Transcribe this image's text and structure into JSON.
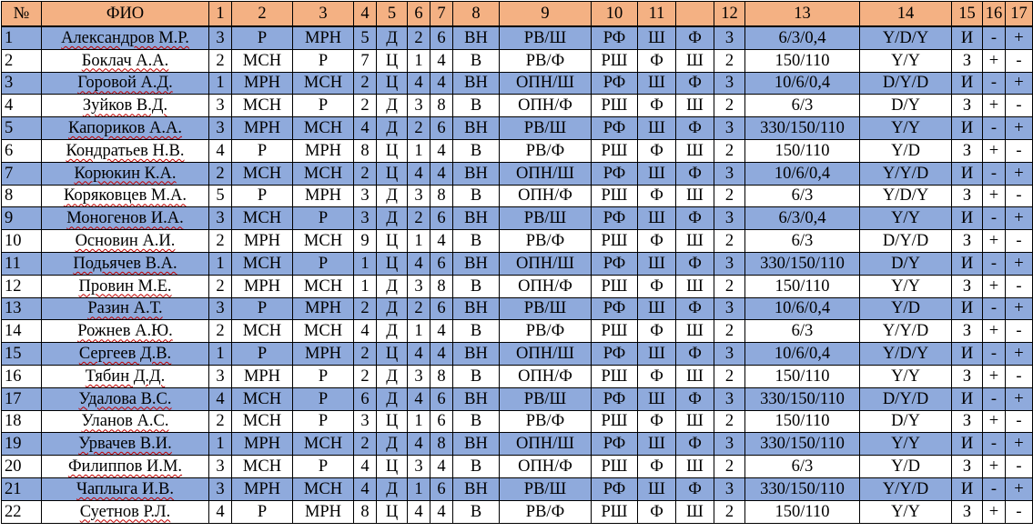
{
  "headers": [
    "№",
    "ФИО",
    "1",
    "2",
    "3",
    "4",
    "5",
    "6",
    "7",
    "8",
    "9",
    "10",
    "11",
    "",
    "12",
    "13",
    "14",
    "15",
    "16",
    "17"
  ],
  "rows": [
    [
      "1",
      "Александров М.Р.",
      "3",
      "Р",
      "МРН",
      "5",
      "Д",
      "2",
      "6",
      "ВН",
      "РВ/Ш",
      "РФ",
      "Ш",
      "Ф",
      "3",
      "6/3/0,4",
      "Y/D/Y",
      "И",
      "-",
      "+"
    ],
    [
      "2",
      "Боклач А.А.",
      "2",
      "МСН",
      "Р",
      "7",
      "Ц",
      "1",
      "4",
      "В",
      "РВ/Ф",
      "РШ",
      "Ф",
      "Ш",
      "2",
      "150/110",
      "Y/Y",
      "З",
      "+",
      "-"
    ],
    [
      "3",
      "Горовой А.Д.",
      "1",
      "МРН",
      "МСН",
      "2",
      "Ц",
      "4",
      "4",
      "ВН",
      "ОПН/Ш",
      "РФ",
      "Ш",
      "Ф",
      "3",
      "10/6/0,4",
      "D/Y/D",
      "И",
      "-",
      "+"
    ],
    [
      "4",
      "Зуйков В.Д.",
      "3",
      "МСН",
      "Р",
      "2",
      "Д",
      "3",
      "8",
      "В",
      "ОПН/Ф",
      "РШ",
      "Ф",
      "Ш",
      "2",
      "6/3",
      "D/Y",
      "З",
      "+",
      "-"
    ],
    [
      "5",
      "Капориков А.А.",
      "3",
      "МРН",
      "МСН",
      "4",
      "Д",
      "2",
      "6",
      "ВН",
      "РВ/Ш",
      "РФ",
      "Ш",
      "Ф",
      "3",
      "330/150/110",
      "Y/Y",
      "И",
      "-",
      "+"
    ],
    [
      "6",
      "Кондратьев Н.В.",
      "4",
      "Р",
      "МРН",
      "8",
      "Ц",
      "1",
      "4",
      "В",
      "РВ/Ф",
      "РШ",
      "Ф",
      "Ш",
      "2",
      "150/110",
      "Y/D",
      "З",
      "+",
      "-"
    ],
    [
      "7",
      "Корюкин К.А.",
      "2",
      "МСН",
      "МСН",
      "2",
      "Ц",
      "4",
      "4",
      "ВН",
      "ОПН/Ш",
      "РФ",
      "Ш",
      "Ф",
      "3",
      "10/6/0,4",
      "Y/Y/D",
      "И",
      "-",
      "+"
    ],
    [
      "8",
      "Коряковцев М.А.",
      "5",
      "Р",
      "МРН",
      "3",
      "Д",
      "3",
      "8",
      "В",
      "ОПН/Ф",
      "РШ",
      "Ф",
      "Ш",
      "2",
      "6/3",
      "Y/D/Y",
      "З",
      "+",
      "-"
    ],
    [
      "9",
      "Моногенов И.А.",
      "3",
      "МСН",
      "Р",
      "3",
      "Д",
      "2",
      "6",
      "ВН",
      "РВ/Ш",
      "РФ",
      "Ш",
      "Ф",
      "3",
      "6/3/0,4",
      "Y/Y",
      "И",
      "-",
      "+"
    ],
    [
      "10",
      "Основин А.И.",
      "2",
      "МРН",
      "МСН",
      "9",
      "Ц",
      "1",
      "4",
      "В",
      "РВ/Ф",
      "РШ",
      "Ф",
      "Ш",
      "2",
      "6/3",
      "D/Y/D",
      "З",
      "+",
      "-"
    ],
    [
      "11",
      "Подьячев В.А.",
      "1",
      "МСН",
      "Р",
      "1",
      "Ц",
      "4",
      "6",
      "ВН",
      "ОПН/Ш",
      "РФ",
      "Ш",
      "Ф",
      "3",
      "330/150/110",
      "D/Y",
      "И",
      "-",
      "+"
    ],
    [
      "12",
      "Провин М.Е.",
      "2",
      "МРН",
      "МСН",
      "1",
      "Д",
      "3",
      "8",
      "В",
      "ОПН/Ф",
      "РШ",
      "Ф",
      "Ш",
      "2",
      "150/110",
      "Y/Y",
      "З",
      "+",
      "-"
    ],
    [
      "13",
      "Разин А.Т.",
      "3",
      "Р",
      "МРН",
      "2",
      "Д",
      "2",
      "6",
      "ВН",
      "РВ/Ш",
      "РФ",
      "Ш",
      "Ф",
      "3",
      "10/6/0,4",
      "Y/D",
      "И",
      "-",
      "+"
    ],
    [
      "14",
      "Рожнев А.Ю.",
      "2",
      "МСН",
      "МСН",
      "4",
      "Д",
      "1",
      "4",
      "В",
      "РВ/Ф",
      "РШ",
      "Ф",
      "Ш",
      "2",
      "6/3",
      "Y/Y/D",
      "З",
      "+",
      "-"
    ],
    [
      "15",
      "Сергеев Д.В.",
      "1",
      "Р",
      "МРН",
      "2",
      "Ц",
      "4",
      "4",
      "ВН",
      "ОПН/Ш",
      "РФ",
      "Ш",
      "Ф",
      "3",
      "10/6/0,4",
      "Y/D/Y",
      "И",
      "-",
      "+"
    ],
    [
      "16",
      "Тябин Д.Д.",
      "3",
      "МРН",
      "Р",
      "2",
      "Д",
      "3",
      "8",
      "В",
      "ОПН/Ф",
      "РШ",
      "Ф",
      "Ш",
      "2",
      "150/110",
      "Y/Y",
      "З",
      "+",
      "-"
    ],
    [
      "17",
      "Удалова В.С.",
      "4",
      "МСН",
      "Р",
      "6",
      "Д",
      "4",
      "6",
      "ВН",
      "РВ/Ш",
      "РФ",
      "Ш",
      "Ф",
      "3",
      "330/150/110",
      "D/Y/D",
      "И",
      "-",
      "+"
    ],
    [
      "18",
      "Уланов А.С.",
      "2",
      "МСН",
      "Р",
      "3",
      "Ц",
      "1",
      "6",
      "В",
      "РВ/Ф",
      "РШ",
      "Ф",
      "Ш",
      "2",
      "150/110",
      "D/Y",
      "З",
      "+",
      "-"
    ],
    [
      "19",
      "Урвачев В.И.",
      "1",
      "МРН",
      "МСН",
      "2",
      "Д",
      "4",
      "8",
      "ВН",
      "ОПН/Ш",
      "РФ",
      "Ш",
      "Ф",
      "3",
      "330/150/110",
      "Y/Y",
      "И",
      "-",
      "+"
    ],
    [
      "20",
      "Филиппов И.М.",
      "3",
      "МСН",
      "Р",
      "4",
      "Ц",
      "3",
      "4",
      "В",
      "ОПН/Ф",
      "РШ",
      "Ф",
      "Ш",
      "2",
      "6/3",
      "Y/D",
      "З",
      "+",
      "-"
    ],
    [
      "21",
      "Чаплыга И.В.",
      "3",
      "МРН",
      "МСН",
      "4",
      "Д",
      "1",
      "6",
      "ВН",
      "РВ/Ш",
      "РФ",
      "Ш",
      "Ф",
      "3",
      "330/150/110",
      "Y/Y/D",
      "И",
      "-",
      "+"
    ],
    [
      "22",
      "Суетнов Р.Л.",
      "4",
      "Р",
      "МРН",
      "8",
      "Ц",
      "4",
      "4",
      "В",
      "РВ/Ф",
      "РШ",
      "Ф",
      "Ш",
      "2",
      "150/110",
      "Y/Y",
      "З",
      "+",
      "-"
    ]
  ],
  "colors": {
    "header_bg": "#f4b183",
    "odd_row_bg": "#8faadc",
    "even_row_bg": "#ffffff",
    "spell_underline": "#c00000"
  }
}
